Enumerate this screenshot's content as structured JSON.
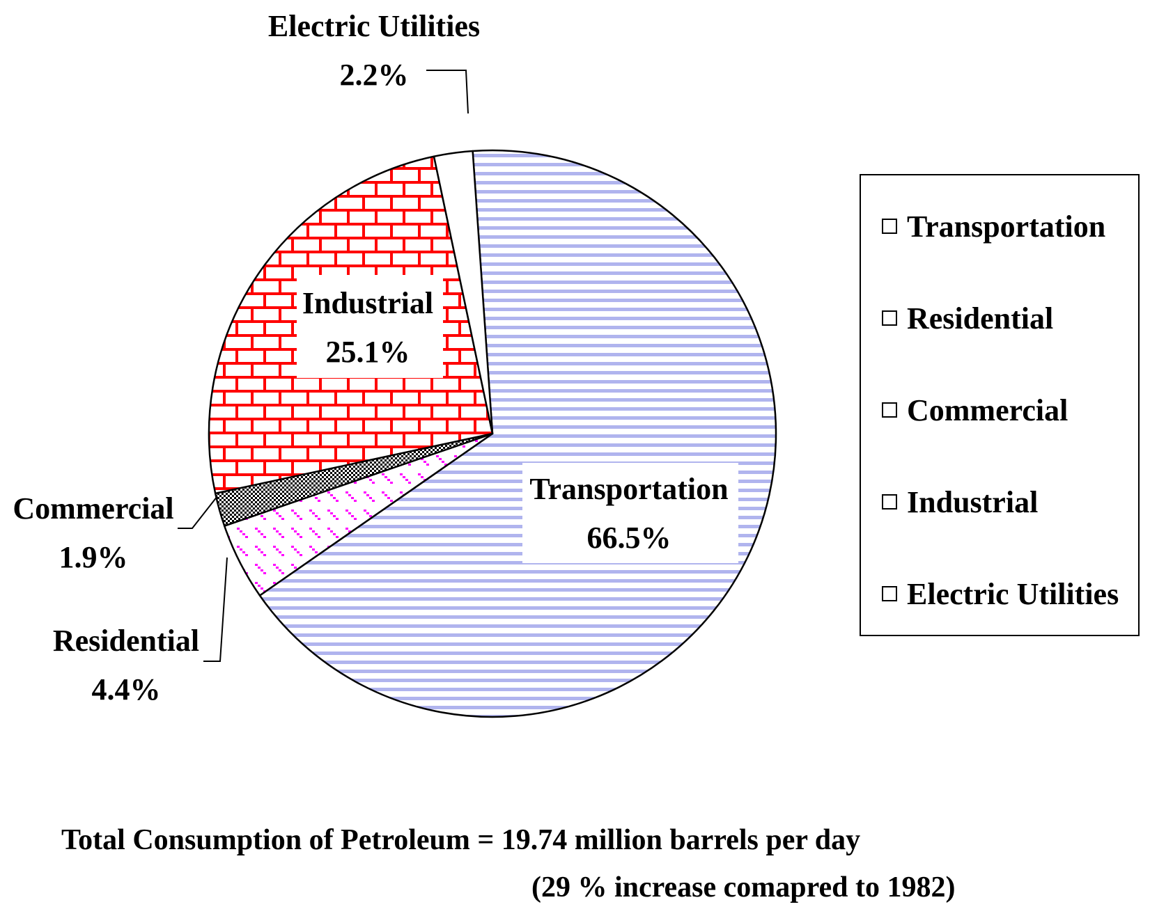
{
  "chart_data": {
    "type": "pie",
    "slices": [
      {
        "label": "Transportation",
        "value": 66.5,
        "value_label": "66.5%",
        "fill": "#b0b4ee",
        "pattern": "horizontal-lines"
      },
      {
        "label": "Residential",
        "value": 4.4,
        "value_label": "4.4%",
        "fill": "#ff00ff",
        "pattern": "dashes"
      },
      {
        "label": "Commercial",
        "value": 1.9,
        "value_label": "1.9%",
        "fill": "#000000",
        "pattern": "dots"
      },
      {
        "label": "Industrial",
        "value": 25.1,
        "value_label": "25.1%",
        "fill": "#ff0000",
        "pattern": "bricks"
      },
      {
        "label": "Electric Utilities",
        "value": 2.2,
        "value_label": "2.2%",
        "fill": "#ffffff",
        "pattern": "solid"
      }
    ],
    "legend": {
      "placement": "right",
      "items": [
        "Transportation",
        "Residential",
        "Commercial",
        "Industrial",
        "Electric Utilities"
      ]
    },
    "footer": [
      "Total Consumption of Petroleum = 19.74 million barrels per day",
      "(29 % increase comapred to 1982)"
    ]
  }
}
